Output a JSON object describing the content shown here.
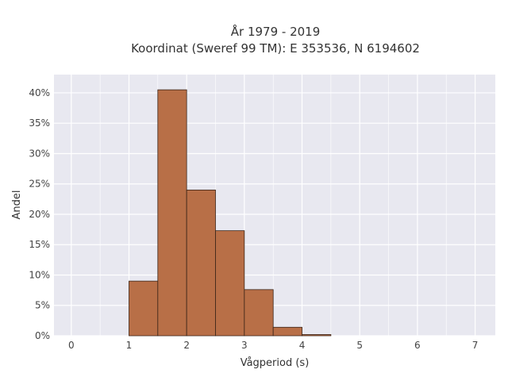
{
  "chart_data": {
    "type": "bar",
    "title_line1": "År 1979 - 2019",
    "title_line2": "Koordinat (Sweref 99 TM): E 353536, N 6194602",
    "xlabel": "Vågperiod (s)",
    "ylabel": "Andel",
    "xlim": [
      -0.3,
      7.35
    ],
    "ylim": [
      0,
      43
    ],
    "x_ticks": [
      0,
      1,
      2,
      3,
      4,
      5,
      6,
      7
    ],
    "y_ticks": [
      0,
      5,
      10,
      15,
      20,
      25,
      30,
      35,
      40
    ],
    "y_tick_labels": [
      "0%",
      "5%",
      "10%",
      "15%",
      "20%",
      "25%",
      "30%",
      "35%",
      "40%"
    ],
    "bins": [
      {
        "x0": 1.0,
        "x1": 1.5,
        "value": 9.0
      },
      {
        "x0": 1.5,
        "x1": 2.0,
        "value": 40.5
      },
      {
        "x0": 2.0,
        "x1": 2.5,
        "value": 24.0
      },
      {
        "x0": 2.5,
        "x1": 3.0,
        "value": 17.3
      },
      {
        "x0": 3.0,
        "x1": 3.5,
        "value": 7.6
      },
      {
        "x0": 3.5,
        "x1": 4.0,
        "value": 1.4
      },
      {
        "x0": 4.0,
        "x1": 4.5,
        "value": 0.2
      }
    ],
    "grid": true,
    "colors": {
      "bar": "#b86f47",
      "bar_edge": "#3a2418",
      "plot_bg": "#e8e8f0",
      "grid": "#ffffff"
    }
  }
}
